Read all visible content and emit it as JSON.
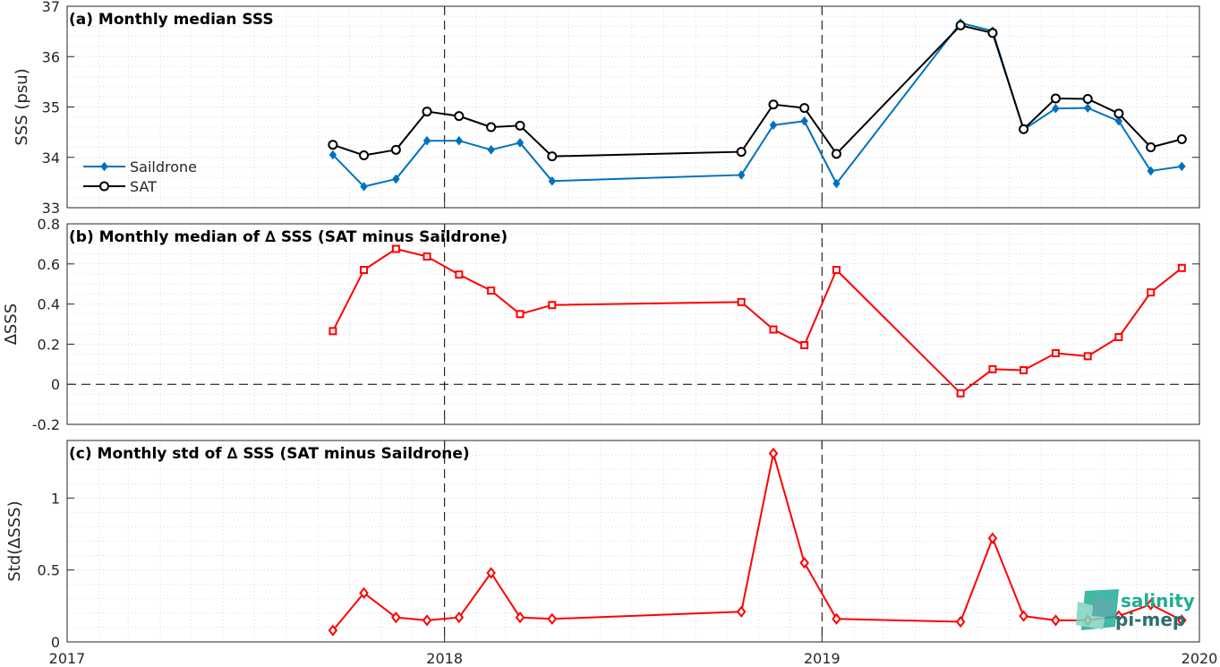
{
  "chart_data": [
    {
      "type": "line",
      "title": "(a) Monthly median SSS",
      "xlabel": "",
      "ylabel": "SSS (psu)",
      "xlim": [
        "2017-01-01",
        "2020-01-01"
      ],
      "xticks": [
        "2017",
        "2018",
        "2019",
        "2020"
      ],
      "ylim": [
        33,
        37
      ],
      "yticks": [
        "33",
        "34",
        "35",
        "36",
        "37"
      ],
      "grid": true,
      "legend": "middle-left",
      "series": [
        {
          "name": "Saildrone",
          "color": "#0072bd",
          "marker": "diamond",
          "x": [
            "2017-09-15",
            "2017-10-15",
            "2017-11-15",
            "2017-12-15",
            "2018-01-15",
            "2018-02-15",
            "2018-03-15",
            "2018-04-15",
            "2018-10-15",
            "2018-11-15",
            "2018-12-15",
            "2019-01-15",
            "2019-05-15",
            "2019-06-15",
            "2019-07-15",
            "2019-08-15",
            "2019-09-15",
            "2019-10-15",
            "2019-11-15",
            "2019-12-15"
          ],
          "values": [
            34.05,
            33.42,
            33.57,
            34.33,
            34.33,
            34.15,
            34.29,
            33.53,
            33.65,
            34.64,
            34.72,
            33.48,
            36.67,
            36.51,
            34.55,
            34.97,
            34.98,
            34.72,
            33.73,
            33.82
          ]
        },
        {
          "name": "SAT",
          "color": "#000000",
          "marker": "circle",
          "x": [
            "2017-09-15",
            "2017-10-15",
            "2017-11-15",
            "2017-12-15",
            "2018-01-15",
            "2018-02-15",
            "2018-03-15",
            "2018-04-15",
            "2018-10-15",
            "2018-11-15",
            "2018-12-15",
            "2019-01-15",
            "2019-05-15",
            "2019-06-15",
            "2019-07-15",
            "2019-08-15",
            "2019-09-15",
            "2019-10-15",
            "2019-11-15",
            "2019-12-15"
          ],
          "values": [
            34.25,
            34.04,
            34.15,
            34.91,
            34.82,
            34.6,
            34.63,
            34.02,
            34.11,
            35.05,
            34.98,
            34.07,
            36.62,
            36.47,
            34.56,
            35.17,
            35.16,
            34.87,
            34.2,
            34.36
          ]
        }
      ]
    },
    {
      "type": "line",
      "title": "(b) Monthly median of ∆ SSS (SAT minus Saildrone)",
      "xlabel": "",
      "ylabel": "∆SSS",
      "xlim": [
        "2017-01-01",
        "2020-01-01"
      ],
      "ylim": [
        -0.2,
        0.8
      ],
      "yticks": [
        "-0.2",
        "0",
        "0.2",
        "0.4",
        "0.6",
        "0.8"
      ],
      "grid": true,
      "reference_line": 0,
      "series": [
        {
          "color": "#ff0000",
          "marker": "square",
          "x": [
            "2017-09-15",
            "2017-10-15",
            "2017-11-15",
            "2017-12-15",
            "2018-01-15",
            "2018-02-15",
            "2018-03-15",
            "2018-04-15",
            "2018-10-15",
            "2018-11-15",
            "2018-12-15",
            "2019-01-15",
            "2019-05-15",
            "2019-06-15",
            "2019-07-15",
            "2019-08-15",
            "2019-09-15",
            "2019-10-15",
            "2019-11-15",
            "2019-12-15"
          ],
          "values": [
            0.265,
            0.57,
            0.675,
            0.637,
            0.547,
            0.467,
            0.35,
            0.395,
            0.41,
            0.273,
            0.195,
            0.57,
            -0.045,
            0.075,
            0.07,
            0.155,
            0.14,
            0.235,
            0.458,
            0.58
          ]
        }
      ]
    },
    {
      "type": "line",
      "title": "(c) Monthly std of ∆ SSS (SAT minus Saildrone)",
      "xlabel": "",
      "ylabel": "Std(∆SSS)",
      "xlim": [
        "2017-01-01",
        "2020-01-01"
      ],
      "xticks": [
        "2017",
        "2018",
        "2019",
        "2020"
      ],
      "ylim": [
        0,
        1.4
      ],
      "yticks": [
        "0",
        "0.5",
        "1"
      ],
      "grid": true,
      "series": [
        {
          "color": "#ff0000",
          "marker": "diamond",
          "x": [
            "2017-09-15",
            "2017-10-15",
            "2017-11-15",
            "2017-12-15",
            "2018-01-15",
            "2018-02-15",
            "2018-03-15",
            "2018-04-15",
            "2018-10-15",
            "2018-11-15",
            "2018-12-15",
            "2019-01-15",
            "2019-05-15",
            "2019-06-15",
            "2019-07-15",
            "2019-08-15",
            "2019-09-15",
            "2019-10-15",
            "2019-11-15",
            "2019-12-15"
          ],
          "values": [
            0.08,
            0.34,
            0.17,
            0.15,
            0.17,
            0.48,
            0.17,
            0.16,
            0.21,
            1.31,
            0.55,
            0.16,
            0.14,
            0.72,
            0.18,
            0.15,
            0.15,
            0.18,
            0.26,
            0.15
          ]
        }
      ]
    }
  ],
  "logo": {
    "line1": "salinity",
    "line2": "pi-mep"
  },
  "colors": {
    "axis": "#262626",
    "grid": "#dcdcdc",
    "logo_teal": "#1fae96",
    "logo_dark": "#2b6f73"
  }
}
